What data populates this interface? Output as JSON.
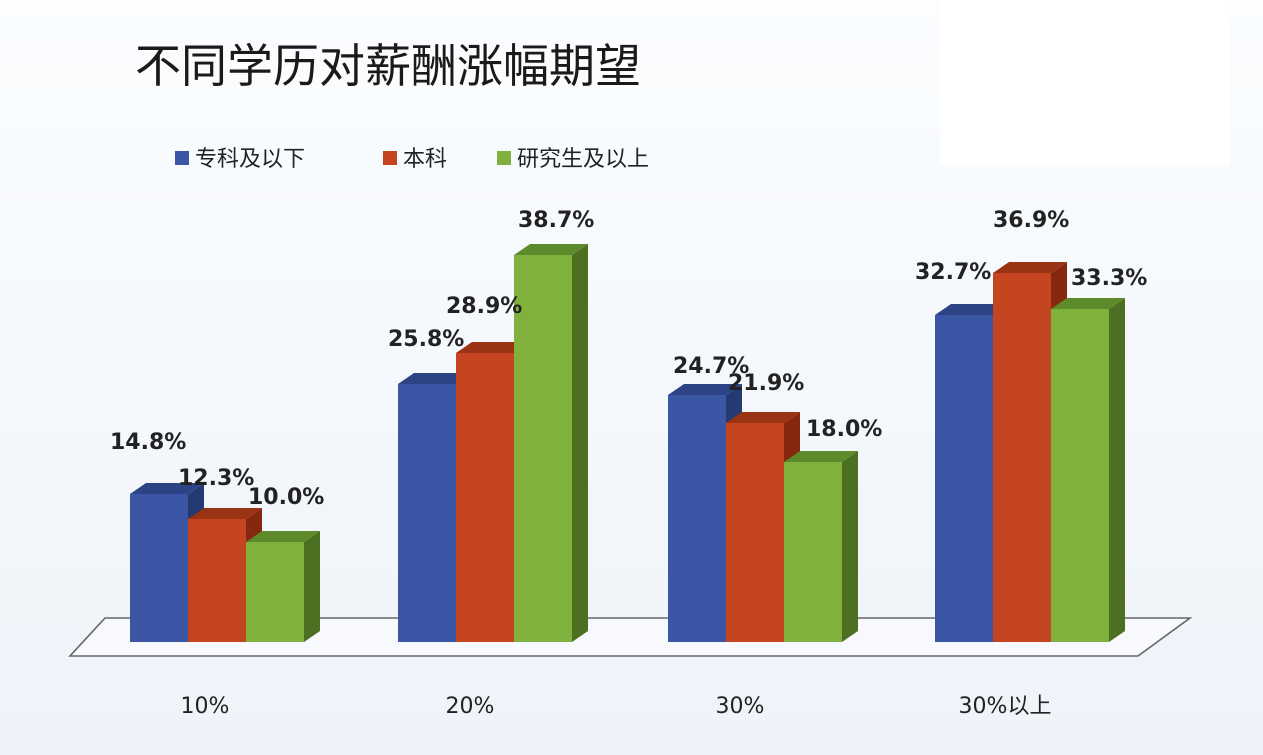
{
  "chart_data": {
    "type": "bar",
    "title": "不同学历对薪酬涨幅期望",
    "categories": [
      "10%",
      "20%",
      "30%",
      "30%以上"
    ],
    "series": [
      {
        "name": "专科及以下",
        "values": [
          14.8,
          25.8,
          24.7,
          32.7
        ],
        "labels": [
          "14.8%",
          "25.8%",
          "24.7%",
          "32.7%"
        ]
      },
      {
        "name": "本科",
        "values": [
          12.3,
          28.9,
          21.9,
          36.9
        ],
        "labels": [
          "12.3%",
          "28.9%",
          "21.9%",
          "36.9%"
        ]
      },
      {
        "name": "研究生及以上",
        "values": [
          10.0,
          38.7,
          18.0,
          33.3
        ],
        "labels": [
          "10.0%",
          "38.7%",
          "18.0%",
          "33.3%"
        ]
      }
    ],
    "ylim": [
      0,
      40
    ],
    "grid": false,
    "legend_position": "top-left",
    "style": "3d-column",
    "colors": {
      "专科及以下": {
        "front": "#3c56a6",
        "top": "#2c4385",
        "side": "#233a73"
      },
      "本科": {
        "front": "#c4451f",
        "top": "#9a3214",
        "side": "#86280f"
      },
      "研究生及以上": {
        "front": "#7fb13c",
        "top": "#5d8a2b",
        "side": "#4c6f22"
      }
    }
  }
}
